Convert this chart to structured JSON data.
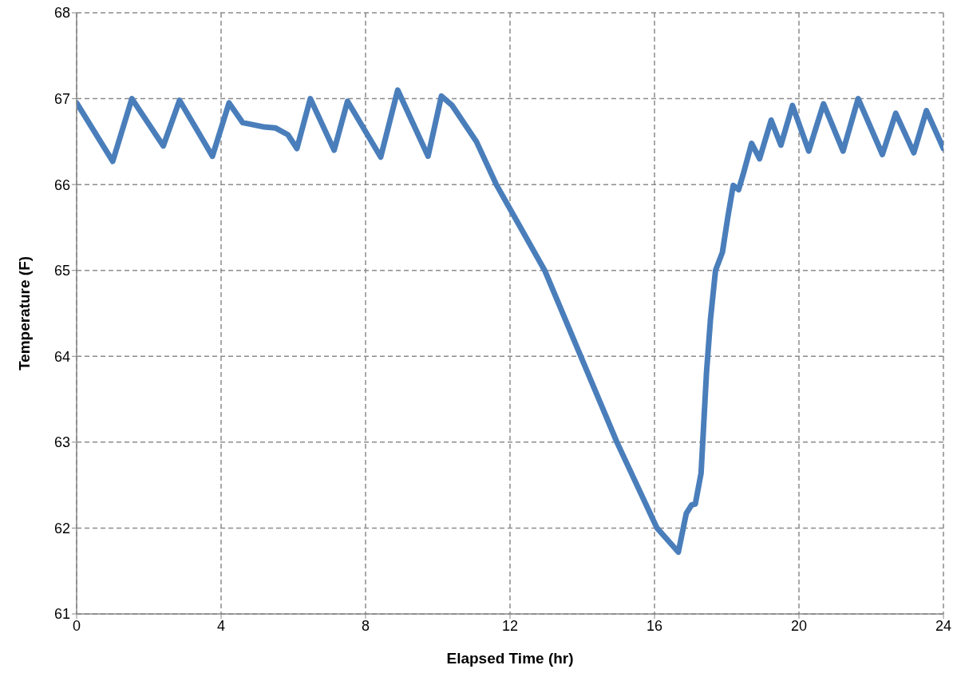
{
  "chart_data": {
    "type": "line",
    "xlabel": "Elapsed Time (hr)",
    "ylabel": "Temperature (F)",
    "xlim": [
      0,
      24
    ],
    "xticks": [
      0,
      4,
      8,
      12,
      16,
      20,
      24
    ],
    "ylim": [
      61,
      68
    ],
    "yticks": [
      61,
      62,
      63,
      64,
      65,
      66,
      67,
      68
    ],
    "grid": true,
    "marker": "none",
    "line_style": "solid",
    "series": [
      {
        "color": "#4a7ebb",
        "x": [
          0,
          1.0,
          1.53,
          2.4,
          2.85,
          3.76,
          4.22,
          4.6,
          5.2,
          5.5,
          5.85,
          6.1,
          6.47,
          7.13,
          7.5,
          8.42,
          8.89,
          9.73,
          10.1,
          10.4,
          11.07,
          11.62,
          12.96,
          13.96,
          14.96,
          16.07,
          16.66,
          16.88,
          17.03,
          17.13,
          17.29,
          17.44,
          17.55,
          17.69,
          17.88,
          18.03,
          18.18,
          18.33,
          18.47,
          18.69,
          18.91,
          19.23,
          19.5,
          19.82,
          20.27,
          20.68,
          21.22,
          21.64,
          22.31,
          22.68,
          23.18,
          23.53,
          24
        ],
        "values": [
          66.95,
          66.27,
          67.0,
          66.45,
          66.98,
          66.33,
          66.95,
          66.72,
          66.67,
          66.66,
          66.58,
          66.42,
          67.0,
          66.4,
          66.97,
          66.32,
          67.1,
          66.33,
          67.03,
          66.92,
          66.5,
          66.0,
          65.0,
          64.0,
          63.0,
          62.0,
          61.72,
          62.17,
          62.27,
          62.28,
          62.64,
          63.81,
          64.43,
          65.0,
          65.21,
          65.62,
          65.99,
          65.94,
          66.14,
          66.48,
          66.3,
          66.75,
          66.46,
          66.92,
          66.39,
          66.94,
          66.39,
          67.0,
          66.35,
          66.83,
          66.37,
          66.86,
          66.42
        ]
      }
    ]
  }
}
